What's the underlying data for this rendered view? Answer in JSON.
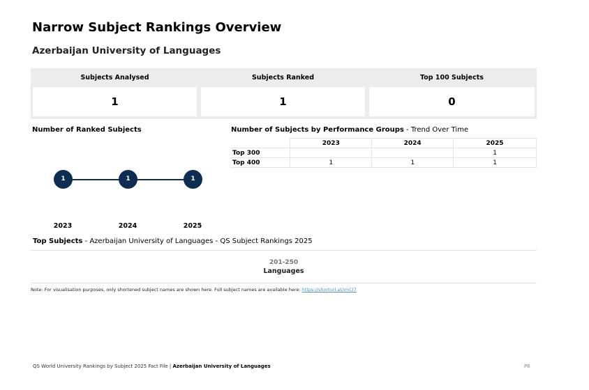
{
  "title": "Narrow Subject Rankings Overview",
  "university": "Azerbaijan University of Languages",
  "stats": [
    {
      "label": "Subjects Analysed",
      "value": "1"
    },
    {
      "label": "Subjects Ranked",
      "value": "1"
    },
    {
      "label": "Top 100 Subjects",
      "value": "0"
    }
  ],
  "ranked_subjects": {
    "title": "Number of Ranked Subjects",
    "points": [
      {
        "year": "2023",
        "value": "1"
      },
      {
        "year": "2024",
        "value": "1"
      },
      {
        "year": "2025",
        "value": "1"
      }
    ]
  },
  "performance": {
    "title": "Number of Subjects by Performance Groups",
    "title_suffix": " - Trend Over Time",
    "years": [
      "2023",
      "2024",
      "2025"
    ],
    "rows": [
      {
        "label": "Top 300",
        "values": [
          "",
          "",
          "1"
        ]
      },
      {
        "label": "Top 400",
        "values": [
          "1",
          "1",
          "1"
        ]
      }
    ]
  },
  "top_subjects": {
    "label": "Top Subjects",
    "context": " - Azerbaijan University of Languages - QS Subject Rankings 2025",
    "range": "201-250",
    "subject": "Languages"
  },
  "note": {
    "text": "Note: For visualisation purposes, only shortened subject names are shown here. Full subject names are available here: ",
    "link": "https://shorturl.at/imCI7"
  },
  "footer": {
    "text": "QS World University Rankings by Subject 2025 Fact File | ",
    "university": "Azerbaijan University of Languages",
    "page": "P6"
  },
  "colors": {
    "node": "#0e2d53",
    "panel": "#ececec"
  }
}
